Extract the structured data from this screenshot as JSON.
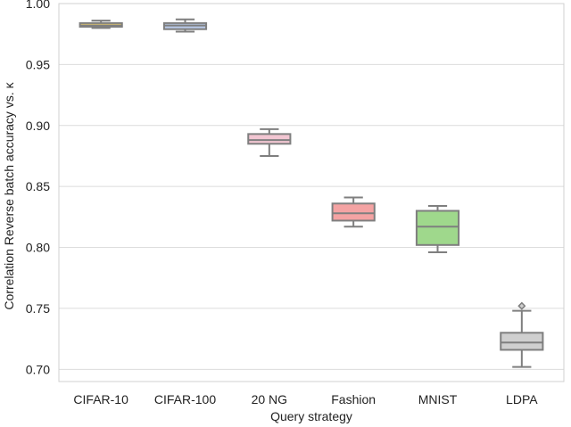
{
  "chart_data": {
    "type": "box",
    "xlabel": "Query strategy",
    "ylabel": "Correlation Reverse batch accuracy vs. κ",
    "ylim": [
      0.69,
      1.0
    ],
    "yticks": [
      "0.70",
      "0.75",
      "0.80",
      "0.85",
      "0.90",
      "0.95",
      "1.00"
    ],
    "grid": "horizontal",
    "categories": [
      "CIFAR-10",
      "CIFAR-100",
      "20 NG",
      "Fashion",
      "MNIST",
      "LDPA"
    ],
    "boxes": [
      {
        "label": "CIFAR-10",
        "color": "#e8c96b",
        "whisker_low": 0.98,
        "q1": 0.981,
        "median": 0.982,
        "q3": 0.984,
        "whisker_high": 0.986,
        "outliers": []
      },
      {
        "label": "CIFAR-100",
        "color": "#b9c9e8",
        "whisker_low": 0.977,
        "q1": 0.979,
        "median": 0.982,
        "q3": 0.984,
        "whisker_high": 0.987,
        "outliers": []
      },
      {
        "label": "20 NG",
        "color": "#f2c6d2",
        "whisker_low": 0.875,
        "q1": 0.885,
        "median": 0.888,
        "q3": 0.893,
        "whisker_high": 0.897,
        "outliers": []
      },
      {
        "label": "Fashion",
        "color": "#f4a3a3",
        "whisker_low": 0.817,
        "q1": 0.822,
        "median": 0.828,
        "q3": 0.836,
        "whisker_high": 0.841,
        "outliers": []
      },
      {
        "label": "MNIST",
        "color": "#9fd88c",
        "whisker_low": 0.796,
        "q1": 0.802,
        "median": 0.817,
        "q3": 0.83,
        "whisker_high": 0.834,
        "outliers": []
      },
      {
        "label": "LDPA",
        "color": "#cfcfcf",
        "whisker_low": 0.702,
        "q1": 0.716,
        "median": 0.722,
        "q3": 0.73,
        "whisker_high": 0.748,
        "outliers": [
          0.752
        ]
      }
    ]
  }
}
